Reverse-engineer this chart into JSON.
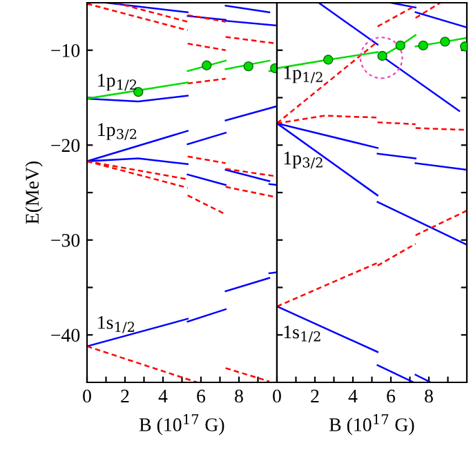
{
  "chart_data": [
    {
      "type": "line",
      "xlabel": "B (10$^{17}$ G)",
      "ylabel": "E(MeV)",
      "xlim": [
        0,
        10
      ],
      "ylim": [
        -45,
        -5
      ],
      "xticks": [
        0,
        {
          "value": 1,
          "label": null
        },
        2,
        {
          "value": 3,
          "label": null
        },
        4,
        {
          "value": 5,
          "label": null
        },
        6,
        {
          "value": 7,
          "label": null
        },
        8,
        {
          "value": 9,
          "label": null
        }
      ],
      "yticks": [
        {
          "value": -10,
          "label": "−10"
        },
        {
          "value": -15,
          "label": null
        },
        {
          "value": -20,
          "label": "−20"
        },
        {
          "value": -25,
          "label": null
        },
        {
          "value": -30,
          "label": "−30"
        },
        {
          "value": -35,
          "label": null
        },
        {
          "value": -40,
          "label": "−40"
        }
      ],
      "grid": false,
      "legend": false,
      "annotations": [
        "1p$_{1/2}$",
        "1p$_{3/2}$",
        "1s$_{1/2}$"
      ],
      "series": [
        {
          "type": "line",
          "color": "#0000ff",
          "line_style": "solid",
          "x": [
            1,
            5.3,
            null,
            5.3,
            7.3,
            null,
            7.3,
            10
          ],
          "values": [
            -5.0,
            -6.0,
            null,
            -6.4,
            -6.8,
            null,
            -6.9,
            -7.4
          ]
        },
        {
          "type": "line",
          "color": "#0000ff",
          "line_style": "solid",
          "x": [
            7.3,
            9.6
          ],
          "values": [
            -5.3,
            -6.0
          ]
        },
        {
          "type": "line",
          "color": "#0000ff",
          "line_style": "solid",
          "x": [
            0,
            2.7,
            5.3
          ],
          "values": [
            -15.1,
            -15.4,
            -14.8
          ]
        },
        {
          "type": "line",
          "color": "#0000ff",
          "line_style": "solid",
          "x": [
            0,
            5.3,
            null,
            5.3,
            7.3,
            null,
            7.3,
            10
          ],
          "values": [
            -21.7,
            -18.5,
            null,
            -19.9,
            -18.7,
            null,
            -17.4,
            -15.9
          ]
        },
        {
          "type": "line",
          "color": "#0000ff",
          "line_style": "solid",
          "x": [
            0,
            2.7,
            5.3,
            null,
            5.3,
            7.3,
            null,
            7.3,
            9.6,
            null,
            9.6,
            10
          ],
          "values": [
            -21.7,
            -21.4,
            -22.0,
            null,
            -23.1,
            -24.2,
            null,
            -22.6,
            -23.8,
            null,
            -24.1,
            -24.2
          ]
        },
        {
          "type": "line",
          "color": "#0000ff",
          "line_style": "solid",
          "x": [
            0,
            5.3,
            null,
            5.3,
            7.3,
            null,
            7.3,
            9.6,
            null,
            9.6,
            10
          ],
          "values": [
            -41.2,
            -38.3,
            null,
            -38.6,
            -37.3,
            null,
            -35.4,
            -34.0,
            null,
            -33.5,
            -33.4
          ]
        },
        {
          "type": "line",
          "color": "#ff0000",
          "line_style": "dashed",
          "x": [
            0,
            5.3,
            null,
            5.3,
            7.3,
            null,
            7.3,
            10
          ],
          "values": [
            -5.1,
            -7.9,
            null,
            -9.3,
            -10.0,
            null,
            -8.6,
            -9.3
          ]
        },
        {
          "type": "line",
          "color": "#ff0000",
          "line_style": "dashed",
          "x": [
            1.5,
            5.3,
            null,
            5.3,
            7.3
          ],
          "values": [
            -5.0,
            -7.0,
            null,
            -6.3,
            -7.0
          ]
        },
        {
          "type": "line",
          "color": "#ff0000",
          "line_style": "dashed",
          "x": [
            5.3,
            7.3
          ],
          "values": [
            -13.5,
            -13.0
          ]
        },
        {
          "type": "line",
          "color": "#ff0000",
          "line_style": "dashed",
          "x": [
            0,
            5.3,
            null,
            5.3,
            7.3,
            null,
            7.3,
            10
          ],
          "values": [
            -21.7,
            -23.6,
            null,
            -21.2,
            -21.9,
            null,
            -22.5,
            -23.3
          ]
        },
        {
          "type": "line",
          "color": "#ff0000",
          "line_style": "dashed",
          "x": [
            0,
            5.3,
            null,
            5.3,
            7.3,
            null,
            7.3,
            10
          ],
          "values": [
            -21.7,
            -24.5,
            null,
            -25.3,
            -27.3,
            null,
            -24.4,
            -25.5
          ]
        },
        {
          "type": "line",
          "color": "#ff0000",
          "line_style": "dashed",
          "x": [
            0,
            5.8,
            null,
            7.3,
            9.6
          ],
          "values": [
            -41.2,
            -45.0,
            null,
            -43.5,
            -44.9
          ]
        },
        {
          "type": "line",
          "color": "#00dd00",
          "line_style": "solid",
          "x": [
            0,
            5.3,
            null,
            5.3,
            7.3,
            null,
            7.3,
            9.6,
            null,
            9.6,
            10
          ],
          "values": [
            -15.1,
            -13.4,
            null,
            -12.2,
            -11.1,
            null,
            -12.0,
            -11.1,
            null,
            -12.2,
            -12.1
          ]
        },
        {
          "type": "scatter",
          "color": "#00dd00",
          "marker": "circle",
          "x": [
            2.7,
            6.3,
            8.5,
            9.9
          ],
          "values": [
            -14.4,
            -11.6,
            -11.7,
            -11.9
          ]
        }
      ]
    },
    {
      "type": "line",
      "xlabel": "B (10$^{17}$ G)",
      "xlim": [
        0,
        10
      ],
      "ylim": [
        -45,
        -5
      ],
      "tick_labels": "x",
      "xticks": [
        0,
        {
          "value": 1,
          "label": null
        },
        2,
        {
          "value": 3,
          "label": null
        },
        4,
        {
          "value": 5,
          "label": null
        },
        6,
        {
          "value": 7,
          "label": null
        },
        8,
        {
          "value": 9,
          "label": null
        }
      ],
      "yticks": [
        {
          "value": -10,
          "label": null
        },
        {
          "value": -15,
          "label": null
        },
        {
          "value": -20,
          "label": null
        },
        {
          "value": -25,
          "label": null
        },
        {
          "value": -30,
          "label": null
        },
        {
          "value": -35,
          "label": null
        },
        {
          "value": -40,
          "label": null
        }
      ],
      "grid": false,
      "legend": false,
      "annotations": [
        "1p$_{1/2}$",
        "1p$_{3/2}$",
        "1s$_{1/2}$"
      ],
      "series": [
        {
          "type": "line",
          "color": "#0000ff",
          "line_style": "solid",
          "x": [
            2.2,
            5.3
          ],
          "values": [
            -5.0,
            -9.4
          ]
        },
        {
          "type": "line",
          "color": "#0000ff",
          "line_style": "solid",
          "x": [
            5.5,
            9.6
          ],
          "values": [
            -10.6,
            -16.4
          ]
        },
        {
          "type": "line",
          "color": "#0000ff",
          "line_style": "solid",
          "x": [
            6.0,
            7.3,
            null,
            7.3,
            10
          ],
          "values": [
            -5.0,
            -5.5,
            null,
            -6.0,
            -7.6
          ]
        },
        {
          "type": "line",
          "color": "#0000ff",
          "line_style": "solid",
          "x": [
            0,
            5.3,
            null,
            5.3,
            7.3,
            null,
            7.3,
            10
          ],
          "values": [
            -17.7,
            -20.3,
            null,
            -20.9,
            -21.4,
            null,
            -21.9,
            -22.6
          ]
        },
        {
          "type": "line",
          "color": "#0000ff",
          "line_style": "solid",
          "x": [
            0,
            5.3,
            null,
            5.3,
            10
          ],
          "values": [
            -17.7,
            -25.3,
            null,
            -26.0,
            -30.5
          ]
        },
        {
          "type": "line",
          "color": "#0000ff",
          "line_style": "solid",
          "x": [
            0,
            5.3,
            null,
            5.3,
            7.2
          ],
          "values": [
            -37.0,
            -41.8,
            null,
            -43.2,
            -45.0
          ]
        },
        {
          "type": "line",
          "color": "#0000ff",
          "line_style": "solid",
          "x": [
            7.3,
            8.1
          ],
          "values": [
            -44.2,
            -45.0
          ]
        },
        {
          "type": "line",
          "color": "#ff0000",
          "line_style": "dashed",
          "x": [
            0,
            5.3,
            null,
            5.3,
            7.3
          ],
          "values": [
            -17.7,
            -9.1,
            null,
            -7.5,
            -5.3
          ]
        },
        {
          "type": "line",
          "color": "#ff0000",
          "line_style": "dashed",
          "x": [
            7.3,
            8.6
          ],
          "values": [
            -6.6,
            -5.0
          ]
        },
        {
          "type": "line",
          "color": "#ff0000",
          "line_style": "dashed",
          "x": [
            0,
            2.5,
            5.3,
            null,
            5.3,
            7.3,
            null,
            7.3,
            10
          ],
          "values": [
            -17.7,
            -16.9,
            -17.1,
            null,
            -17.6,
            -17.8,
            null,
            -18.2,
            -18.4
          ]
        },
        {
          "type": "line",
          "color": "#ff0000",
          "line_style": "dashed",
          "x": [
            0,
            5.3,
            null,
            5.3,
            7.3,
            null,
            7.3,
            10
          ],
          "values": [
            -37.0,
            -32.4,
            null,
            -32.7,
            -30.4,
            null,
            -29.5,
            -26.9
          ]
        },
        {
          "type": "line",
          "color": "#00dd00",
          "line_style": "solid",
          "x": [
            0,
            2.7,
            5.3
          ],
          "values": [
            -11.9,
            -11.0,
            -10.2
          ]
        },
        {
          "type": "line",
          "color": "#00dd00",
          "line_style": "solid",
          "x": [
            5.55,
            6.5,
            7.3,
            null,
            7.3,
            8.85,
            10
          ],
          "values": [
            -10.6,
            -9.5,
            -8.4,
            null,
            -9.6,
            -9.1,
            -8.7
          ]
        },
        {
          "type": "scatter",
          "color": "#00dd00",
          "marker": "circle",
          "x": [
            2.7,
            5.55,
            6.5,
            7.7,
            8.85,
            9.9
          ],
          "values": [
            -11.0,
            -10.6,
            -9.5,
            -9.5,
            -9.1,
            -9.6
          ]
        }
      ]
    }
  ]
}
